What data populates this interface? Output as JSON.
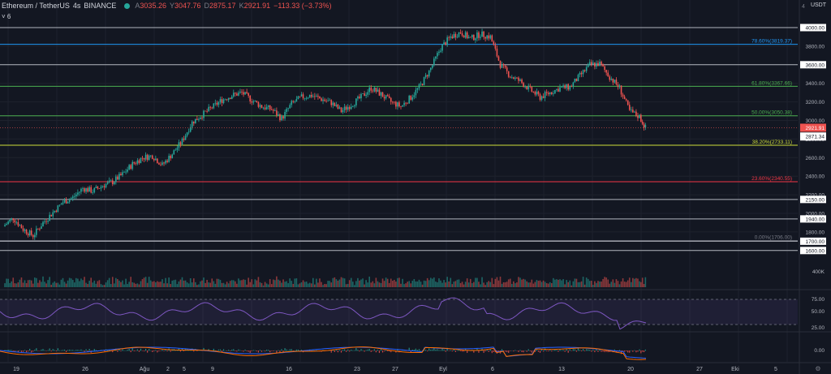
{
  "header": {
    "symbol": "Ethereum / TetherUS",
    "interval": "4s",
    "exchange": "BINANCE",
    "open_label": "A",
    "open": "3035.26",
    "high_label": "Y",
    "high": "3047.76",
    "low_label": "D",
    "low": "2875.17",
    "close_label": "K",
    "close": "2921.91",
    "change": "−113.33 (−3.73%)",
    "collapse": "˅",
    "indicator_count": "6"
  },
  "price_axis": {
    "unit": "USDT",
    "top_label": "4",
    "ticks": [
      "4000.00",
      "3800.00",
      "3600.00",
      "3400.00",
      "3200.00",
      "3000.00",
      "2800.00",
      "2600.00",
      "2400.00",
      "2200.00",
      "2150.00",
      "2000.00",
      "1940.00",
      "1800.00",
      "1700.00",
      "1600.00"
    ],
    "current_price": "2921.91",
    "second_price": "2871.34"
  },
  "volume_axis": {
    "ticks": [
      "400K"
    ]
  },
  "rsi_axis": {
    "ticks": [
      "75.00",
      "50.00",
      "25.00"
    ]
  },
  "macd_axis": {
    "ticks": [
      "0.00"
    ]
  },
  "time_axis": {
    "labels": [
      "19",
      "26",
      "Ağu",
      "2",
      "5",
      "9",
      "16",
      "23",
      "27",
      "Eyl",
      "6",
      "13",
      "20",
      "27",
      "Eki",
      "5"
    ]
  },
  "chart_data": {
    "type": "candlestick",
    "ylim": [
      1550,
      4050
    ],
    "fib_levels": [
      {
        "label": "78.60%(3819.37)",
        "value": 3819.37,
        "color": "#2196f3"
      },
      {
        "label": "61.80%(3367.66)",
        "value": 3367.66,
        "color": "#4caf50"
      },
      {
        "label": "50.00%(3050.38)",
        "value": 3050.38,
        "color": "#4caf50"
      },
      {
        "label": "38.20%(2733.11)",
        "value": 2733.11,
        "color": "#cddc39"
      },
      {
        "label": "23.60%(2340.55)",
        "value": 2340.55,
        "color": "#f23645"
      },
      {
        "label": "0.00%(1706.00)",
        "value": 1706.0,
        "color": "#787b86"
      }
    ],
    "horizontal_lines": [
      4000,
      3600,
      2150,
      1940,
      1700,
      1600
    ],
    "price_path": [
      [
        19,
        1860
      ],
      [
        20,
        1950
      ],
      [
        21,
        1830
      ],
      [
        22,
        1760
      ],
      [
        23,
        1900
      ],
      [
        24,
        2010
      ],
      [
        25,
        2120
      ],
      [
        26,
        2170
      ],
      [
        27,
        2270
      ],
      [
        28,
        2240
      ],
      [
        29,
        2300
      ],
      [
        30,
        2340
      ],
      [
        31,
        2420
      ],
      [
        32,
        2530
      ],
      [
        33,
        2600
      ],
      [
        34,
        2620
      ],
      [
        35,
        2520
      ],
      [
        36,
        2640
      ],
      [
        37,
        2780
      ],
      [
        38,
        2980
      ],
      [
        39,
        3060
      ],
      [
        40,
        3140
      ],
      [
        41,
        3220
      ],
      [
        42,
        3270
      ],
      [
        43,
        3300
      ],
      [
        44,
        3220
      ],
      [
        45,
        3150
      ],
      [
        46,
        3120
      ],
      [
        47,
        3020
      ],
      [
        48,
        3180
      ],
      [
        49,
        3250
      ],
      [
        50,
        3270
      ],
      [
        51,
        3230
      ],
      [
        52,
        3190
      ],
      [
        53,
        3100
      ],
      [
        54,
        3170
      ],
      [
        55,
        3250
      ],
      [
        56,
        3350
      ],
      [
        57,
        3280
      ],
      [
        58,
        3200
      ],
      [
        59,
        3150
      ],
      [
        60,
        3250
      ],
      [
        61,
        3380
      ],
      [
        62,
        3560
      ],
      [
        63,
        3780
      ],
      [
        64,
        3900
      ],
      [
        65,
        3950
      ],
      [
        66,
        3880
      ],
      [
        67,
        3930
      ],
      [
        68,
        3900
      ],
      [
        69,
        3600
      ],
      [
        70,
        3480
      ],
      [
        71,
        3420
      ],
      [
        72,
        3330
      ],
      [
        73,
        3250
      ],
      [
        74,
        3300
      ],
      [
        75,
        3350
      ],
      [
        76,
        3360
      ],
      [
        77,
        3480
      ],
      [
        78,
        3600
      ],
      [
        79,
        3610
      ],
      [
        80,
        3470
      ],
      [
        81,
        3350
      ],
      [
        82,
        3100
      ],
      [
        83,
        3040
      ],
      [
        83.6,
        2922
      ]
    ],
    "rsi_bounds": [
      70,
      30
    ]
  },
  "colors": {
    "up": "#26a69a",
    "down": "#ef5350",
    "grid": "#1e222d",
    "bg": "#131722",
    "rsi": "#7e57c2",
    "macd": "#2962ff",
    "signal": "#ff6d00"
  }
}
